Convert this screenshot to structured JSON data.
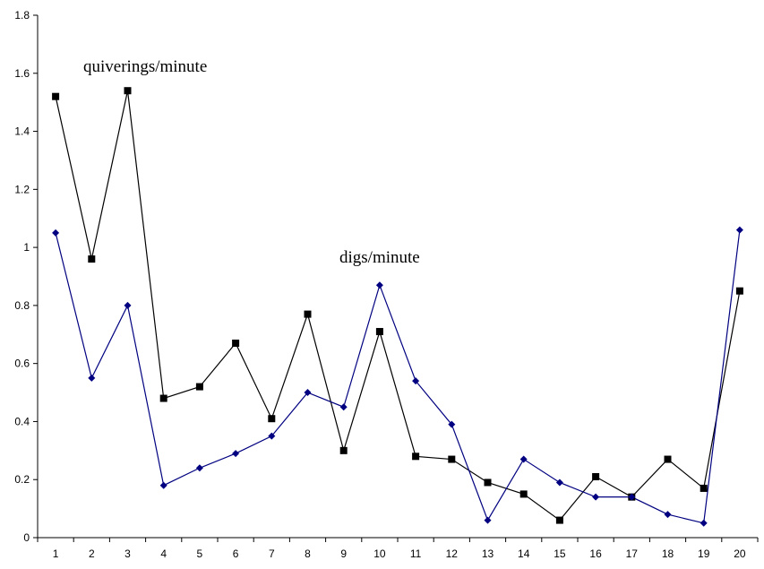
{
  "chart_data": {
    "type": "line",
    "title": "",
    "xlabel": "",
    "ylabel": "",
    "categories": [
      "1",
      "2",
      "3",
      "4",
      "5",
      "6",
      "7",
      "8",
      "9",
      "10",
      "11",
      "12",
      "13",
      "14",
      "15",
      "16",
      "17",
      "18",
      "19",
      "20"
    ],
    "ylim": [
      0,
      1.8
    ],
    "yticks": [
      0,
      0.2,
      0.4,
      0.6,
      0.8,
      1,
      1.2,
      1.4,
      1.6,
      1.8
    ],
    "ytick_labels": [
      "0",
      "0.2",
      "0.4",
      "0.6",
      "0.8",
      "1",
      "1.2",
      "1.4",
      "1.6",
      "1.8"
    ],
    "grid": false,
    "legend": "none",
    "series": [
      {
        "key": "black-squares",
        "color": "#000000",
        "marker": "square",
        "values": [
          1.52,
          0.96,
          1.54,
          0.48,
          0.52,
          0.67,
          0.41,
          0.77,
          0.3,
          0.71,
          0.28,
          0.27,
          0.19,
          0.15,
          0.06,
          0.21,
          0.14,
          0.27,
          0.17,
          0.85
        ]
      },
      {
        "key": "blue-diamonds",
        "color": "#000080",
        "marker": "diamond",
        "values": [
          1.05,
          0.55,
          0.8,
          0.18,
          0.24,
          0.29,
          0.35,
          0.5,
          0.45,
          0.87,
          0.54,
          0.39,
          0.06,
          0.27,
          0.19,
          0.14,
          0.14,
          0.08,
          0.05,
          1.06
        ]
      }
    ],
    "annotations": [
      {
        "key": "quiverings",
        "text": "quiverings/minute"
      },
      {
        "key": "digs",
        "text": "digs/minute"
      }
    ]
  }
}
